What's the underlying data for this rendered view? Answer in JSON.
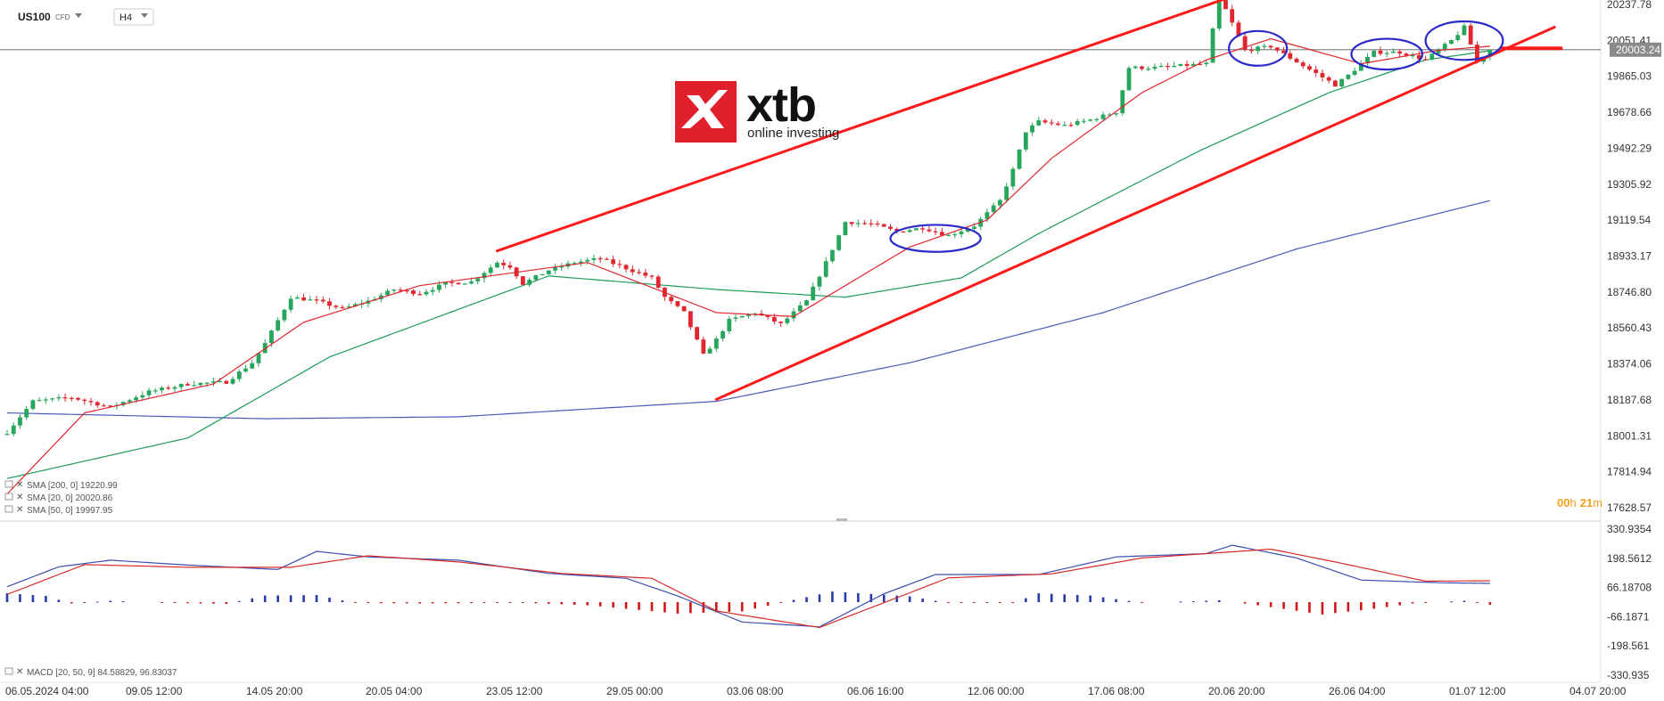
{
  "header": {
    "symbol": "US100",
    "symbol_type": "CFD",
    "interval": "H4"
  },
  "logo": {
    "brand": "xtb",
    "tagline": "online investing",
    "color": "#e2202c"
  },
  "countdown": {
    "hours": "00",
    "h_unit": "h",
    "minutes": "21",
    "m_unit": "m",
    "color": "#f0a020"
  },
  "price_tag": "20003.24",
  "legend": {
    "sma200": "SMA [200, 0] 19220.99",
    "sma20": "SMA [20, 0] 20020.86",
    "sma50": "SMA [50, 0] 19997.95",
    "macd": "MACD [20, 50, 9] 84.58829, 96.83037"
  },
  "chart_data": [
    {
      "type": "candlestick",
      "y_ticks": [
        "20237.78",
        "20051.41",
        "19865.03",
        "19678.66",
        "19492.29",
        "19305.92",
        "19119.54",
        "18933.17",
        "18746.80",
        "18560.43",
        "18374.06",
        "18187.68",
        "18001.31",
        "17814.94",
        "17628.57"
      ],
      "ylim": [
        17628.57,
        20330
      ],
      "x_ticks": [
        "06.05.2024  04:00",
        "09.05  12:00",
        "14.05  20:00",
        "20.05  04:00",
        "23.05  12:00",
        "29.05  00:00",
        "03.06  08:00",
        "06.06  16:00",
        "12.06  00:00",
        "17.06  08:00",
        "20.06  20:00",
        "26.06  04:00",
        "01.07  12:00",
        "04.07  20:00"
      ],
      "last_price": 20003.24,
      "colors": {
        "up": "#26a65b",
        "down": "#e0262e",
        "sma20": "#e0262e",
        "sma50": "#1e9a5a",
        "sma200": "#4a5bb5",
        "trendline": "#ff1a1a",
        "circle": "#2a2ac8"
      },
      "close_anchors": [
        [
          0,
          18020
        ],
        [
          4,
          18180
        ],
        [
          10,
          18200
        ],
        [
          16,
          18150
        ],
        [
          22,
          18230
        ],
        [
          28,
          18270
        ],
        [
          34,
          18280
        ],
        [
          38,
          18380
        ],
        [
          40,
          18480
        ],
        [
          44,
          18720
        ],
        [
          48,
          18700
        ],
        [
          52,
          18660
        ],
        [
          56,
          18700
        ],
        [
          60,
          18760
        ],
        [
          64,
          18740
        ],
        [
          68,
          18790
        ],
        [
          72,
          18800
        ],
        [
          76,
          18900
        ],
        [
          78,
          18880
        ],
        [
          80,
          18790
        ],
        [
          84,
          18860
        ],
        [
          88,
          18900
        ],
        [
          92,
          18920
        ],
        [
          96,
          18870
        ],
        [
          100,
          18820
        ],
        [
          102,
          18720
        ],
        [
          105,
          18640
        ],
        [
          108,
          18420
        ],
        [
          110,
          18500
        ],
        [
          112,
          18600
        ],
        [
          116,
          18640
        ],
        [
          120,
          18580
        ],
        [
          124,
          18700
        ],
        [
          127,
          18900
        ],
        [
          130,
          19110
        ],
        [
          134,
          19100
        ],
        [
          138,
          19060
        ],
        [
          142,
          19080
        ],
        [
          146,
          19040
        ],
        [
          150,
          19090
        ],
        [
          154,
          19220
        ],
        [
          156,
          19380
        ],
        [
          158,
          19580
        ],
        [
          160,
          19630
        ],
        [
          164,
          19610
        ],
        [
          168,
          19640
        ],
        [
          172,
          19680
        ],
        [
          174,
          19910
        ],
        [
          178,
          19910
        ],
        [
          182,
          19920
        ],
        [
          186,
          19930
        ],
        [
          188,
          20280
        ],
        [
          190,
          20140
        ],
        [
          192,
          20000
        ],
        [
          196,
          20020
        ],
        [
          200,
          19940
        ],
        [
          204,
          19860
        ],
        [
          206,
          19820
        ],
        [
          208,
          19870
        ],
        [
          212,
          19990
        ],
        [
          216,
          19990
        ],
        [
          220,
          19950
        ],
        [
          224,
          20050
        ],
        [
          226,
          20120
        ],
        [
          228,
          19940
        ],
        [
          230,
          20003
        ]
      ],
      "sma200_anchors": [
        [
          0,
          18120
        ],
        [
          40,
          18090
        ],
        [
          70,
          18100
        ],
        [
          110,
          18180
        ],
        [
          140,
          18380
        ],
        [
          170,
          18640
        ],
        [
          200,
          18970
        ],
        [
          230,
          19221
        ]
      ],
      "sma50_anchors": [
        [
          0,
          17780
        ],
        [
          28,
          17990
        ],
        [
          50,
          18410
        ],
        [
          84,
          18830
        ],
        [
          110,
          18760
        ],
        [
          130,
          18720
        ],
        [
          148,
          18820
        ],
        [
          160,
          19050
        ],
        [
          185,
          19480
        ],
        [
          205,
          19780
        ],
        [
          220,
          19950
        ],
        [
          230,
          19998
        ]
      ],
      "sma20_anchors": [
        [
          0,
          17700
        ],
        [
          12,
          18120
        ],
        [
          32,
          18270
        ],
        [
          46,
          18590
        ],
        [
          64,
          18780
        ],
        [
          90,
          18900
        ],
        [
          110,
          18640
        ],
        [
          122,
          18620
        ],
        [
          140,
          18980
        ],
        [
          152,
          19120
        ],
        [
          162,
          19440
        ],
        [
          176,
          19780
        ],
        [
          186,
          19950
        ],
        [
          196,
          20060
        ],
        [
          210,
          19930
        ],
        [
          222,
          20000
        ],
        [
          230,
          20021
        ]
      ],
      "trendlines": [
        {
          "from": [
            76,
            18960
          ],
          "to": [
            200,
            20395
          ]
        },
        {
          "from": [
            110,
            18190
          ],
          "to": [
            240,
            20120
          ]
        },
        {
          "from": [
            232,
            20010
          ],
          "to": [
            241,
            20010
          ]
        }
      ],
      "circles": [
        {
          "center": [
            144,
            19025
          ],
          "rx": 7,
          "ry_price": 70
        },
        {
          "center": [
            194,
            20010
          ],
          "rx": 4.5,
          "ry_price": 90
        },
        {
          "center": [
            214,
            19980
          ],
          "rx": 5.5,
          "ry_price": 80
        },
        {
          "center": [
            226,
            20050
          ],
          "rx": 6,
          "ry_price": 100
        }
      ]
    },
    {
      "type": "macd",
      "y_ticks": [
        "330.9354",
        "198.5612",
        "66.18708",
        "-66.1871",
        "-198.561",
        "-330.935"
      ],
      "ylim": [
        -330.935,
        330.9354
      ],
      "series": [
        {
          "name": "MACD",
          "color": "#3a4db0",
          "anchors": [
            [
              0,
              70
            ],
            [
              8,
              160
            ],
            [
              16,
              190
            ],
            [
              28,
              168
            ],
            [
              42,
              148
            ],
            [
              48,
              230
            ],
            [
              56,
              205
            ],
            [
              70,
              190
            ],
            [
              84,
              130
            ],
            [
              96,
              108
            ],
            [
              104,
              28
            ],
            [
              114,
              -90
            ],
            [
              126,
              -112
            ],
            [
              136,
              38
            ],
            [
              144,
              125
            ],
            [
              160,
              125
            ],
            [
              172,
              205
            ],
            [
              186,
              220
            ],
            [
              190,
              258
            ],
            [
              200,
              200
            ],
            [
              210,
              100
            ],
            [
              222,
              88
            ],
            [
              230,
              84.59
            ]
          ]
        },
        {
          "name": "Signal",
          "color": "#d62a2a",
          "anchors": [
            [
              0,
              35
            ],
            [
              12,
              170
            ],
            [
              28,
              158
            ],
            [
              44,
              158
            ],
            [
              56,
              210
            ],
            [
              70,
              182
            ],
            [
              86,
              130
            ],
            [
              100,
              108
            ],
            [
              110,
              -40
            ],
            [
              126,
              -115
            ],
            [
              146,
              110
            ],
            [
              162,
              128
            ],
            [
              176,
              200
            ],
            [
              196,
              240
            ],
            [
              206,
              182
            ],
            [
              220,
              95
            ],
            [
              230,
              96.83
            ]
          ]
        }
      ],
      "histogram_anchors": [
        [
          0,
          40
        ],
        [
          6,
          28
        ],
        [
          10,
          -6
        ],
        [
          16,
          6
        ],
        [
          24,
          -3
        ],
        [
          34,
          -8
        ],
        [
          40,
          30
        ],
        [
          48,
          32
        ],
        [
          54,
          -4
        ],
        [
          64,
          -6
        ],
        [
          80,
          -3
        ],
        [
          90,
          -14
        ],
        [
          104,
          -52
        ],
        [
          114,
          -42
        ],
        [
          122,
          10
        ],
        [
          128,
          48
        ],
        [
          140,
          26
        ],
        [
          146,
          -4
        ],
        [
          156,
          -4
        ],
        [
          160,
          40
        ],
        [
          168,
          30
        ],
        [
          176,
          -3
        ],
        [
          188,
          8
        ],
        [
          194,
          -14
        ],
        [
          204,
          -56
        ],
        [
          212,
          -30
        ],
        [
          218,
          -6
        ],
        [
          226,
          6
        ],
        [
          230,
          -12
        ]
      ]
    }
  ]
}
